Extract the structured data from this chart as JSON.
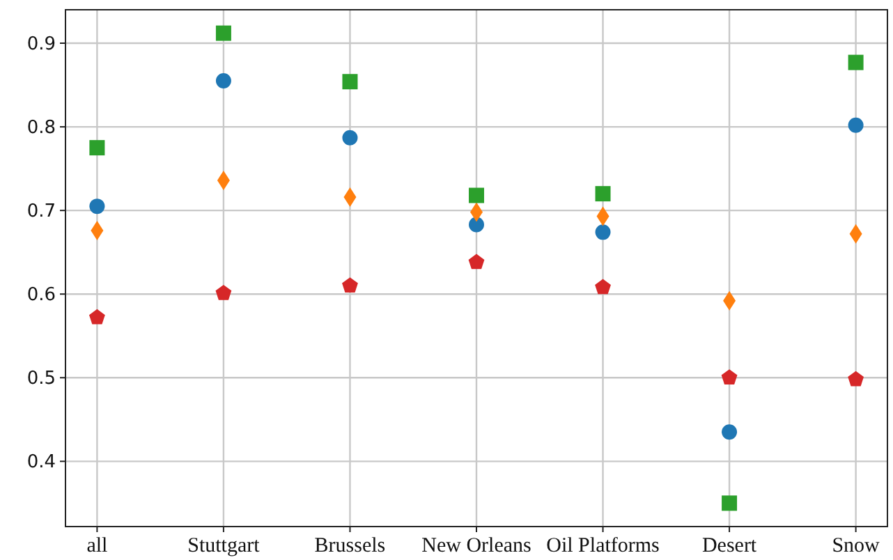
{
  "chart_data": {
    "type": "scatter",
    "categories": [
      "all",
      "Stuttgart",
      "Brussels",
      "New Orleans",
      "Oil Platforms",
      "Desert",
      "Snow"
    ],
    "series": [
      {
        "color": "#1f77b4",
        "marker": "circle",
        "values": [
          0.705,
          0.855,
          0.787,
          0.683,
          0.674,
          0.435,
          0.802
        ]
      },
      {
        "color": "#ff7f0e",
        "marker": "diamond",
        "values": [
          0.676,
          0.736,
          0.716,
          0.698,
          0.693,
          0.592,
          0.672
        ]
      },
      {
        "color": "#2ca02c",
        "marker": "square",
        "values": [
          0.775,
          0.912,
          0.854,
          0.718,
          0.72,
          0.35,
          0.877
        ]
      },
      {
        "color": "#d62728",
        "values": [
          0.572,
          0.601,
          0.61,
          0.638,
          0.608,
          0.5,
          0.498
        ]
      }
    ],
    "ylim": [
      0.322,
      0.94
    ],
    "yticks": [
      0.4,
      0.5,
      0.6,
      0.7,
      0.8,
      0.9
    ],
    "grid": true
  }
}
